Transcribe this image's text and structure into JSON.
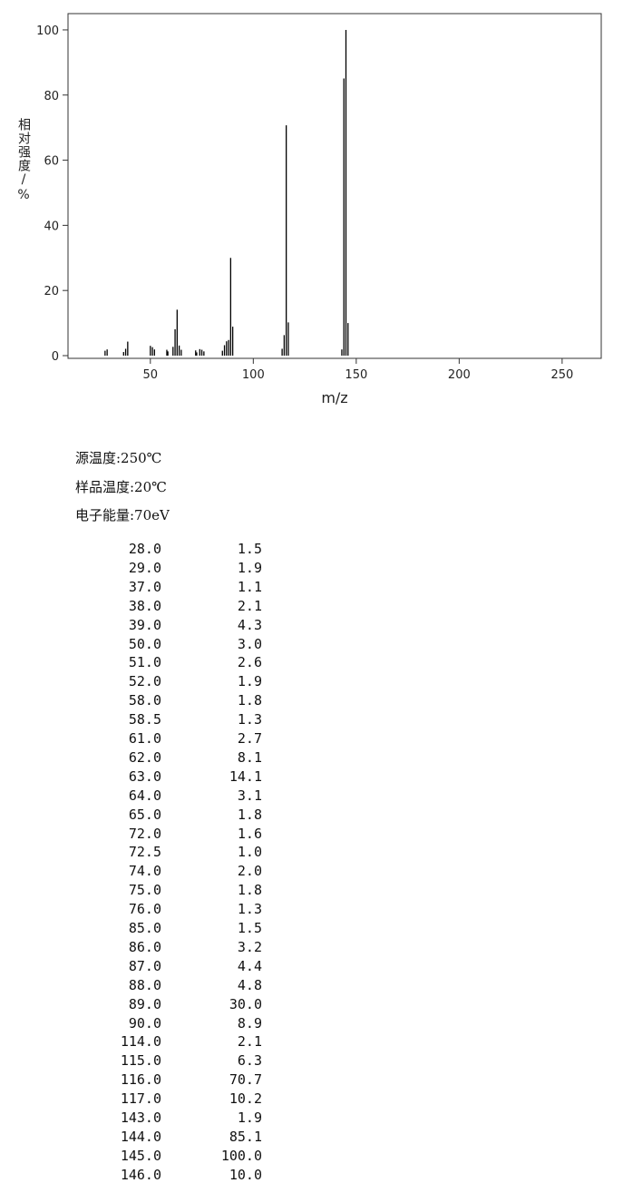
{
  "chart_data": {
    "type": "stem",
    "x_label": "m/z",
    "y_label": "相对强度/%",
    "x": [
      28,
      29,
      37,
      38,
      39,
      50,
      51,
      52,
      58,
      58.5,
      61,
      62,
      63,
      64,
      65,
      72,
      72.5,
      74,
      75,
      76,
      85,
      86,
      87,
      88,
      89,
      90,
      114,
      115,
      116,
      117,
      143,
      144,
      145,
      146
    ],
    "values": [
      1.5,
      1.9,
      1.1,
      2.1,
      4.3,
      3.0,
      2.6,
      1.9,
      1.8,
      1.3,
      2.7,
      8.1,
      14.1,
      3.1,
      1.8,
      1.6,
      1.0,
      2.0,
      1.8,
      1.3,
      1.5,
      3.2,
      4.4,
      4.8,
      30.0,
      8.9,
      2.1,
      6.3,
      70.7,
      10.2,
      1.9,
      85.1,
      100.0,
      10.0
    ],
    "color": "#000000",
    "xlim": [
      10,
      269
    ],
    "xticks": [
      50,
      100,
      150,
      200,
      250
    ],
    "ylim": [
      0,
      105
    ],
    "yticks": [
      0,
      20,
      40,
      60,
      80,
      100
    ]
  },
  "conditions": [
    "源温度:250℃",
    "样品温度:20℃",
    "电子能量:70eV"
  ],
  "table": {
    "rows": [
      [
        "28.0",
        "1.5"
      ],
      [
        "29.0",
        "1.9"
      ],
      [
        "37.0",
        "1.1"
      ],
      [
        "38.0",
        "2.1"
      ],
      [
        "39.0",
        "4.3"
      ],
      [
        "50.0",
        "3.0"
      ],
      [
        "51.0",
        "2.6"
      ],
      [
        "52.0",
        "1.9"
      ],
      [
        "58.0",
        "1.8"
      ],
      [
        "58.5",
        "1.3"
      ],
      [
        "61.0",
        "2.7"
      ],
      [
        "62.0",
        "8.1"
      ],
      [
        "63.0",
        "14.1"
      ],
      [
        "64.0",
        "3.1"
      ],
      [
        "65.0",
        "1.8"
      ],
      [
        "72.0",
        "1.6"
      ],
      [
        "72.5",
        "1.0"
      ],
      [
        "74.0",
        "2.0"
      ],
      [
        "75.0",
        "1.8"
      ],
      [
        "76.0",
        "1.3"
      ],
      [
        "85.0",
        "1.5"
      ],
      [
        "86.0",
        "3.2"
      ],
      [
        "87.0",
        "4.4"
      ],
      [
        "88.0",
        "4.8"
      ],
      [
        "89.0",
        "30.0"
      ],
      [
        "90.0",
        "8.9"
      ],
      [
        "114.0",
        "2.1"
      ],
      [
        "115.0",
        "6.3"
      ],
      [
        "116.0",
        "70.7"
      ],
      [
        "117.0",
        "10.2"
      ],
      [
        "143.0",
        "1.9"
      ],
      [
        "144.0",
        "85.1"
      ],
      [
        "145.0",
        "100.0"
      ],
      [
        "146.0",
        "10.0"
      ]
    ]
  }
}
